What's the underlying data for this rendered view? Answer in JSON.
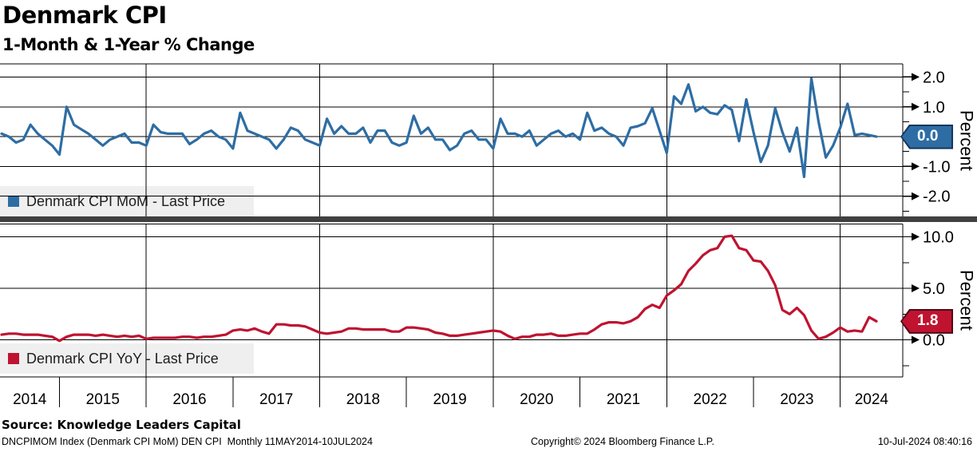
{
  "header": {
    "title": "Denmark CPI",
    "subtitle": "1-Month & 1-Year % Change"
  },
  "x_axis": {
    "year_labels": [
      "2014",
      "2015",
      "2016",
      "2017",
      "2018",
      "2019",
      "2020",
      "2021",
      "2022",
      "2023",
      "2024"
    ],
    "gridline_years": [
      2016,
      2018,
      2020,
      2022,
      2024
    ]
  },
  "chart_data": [
    {
      "type": "line",
      "name": "Denmark CPI MoM",
      "legend": "Denmark CPI MoM - Last Price",
      "ylabel": "Percent",
      "color": "#2E6DA4",
      "badge_border": "#16365C",
      "last_price": 0.0,
      "last_price_label": "0.0",
      "ytick_values": [
        2.0,
        1.0,
        0.0,
        -1.0,
        -2.0
      ],
      "ytick_labels": [
        "2.0",
        "1.0",
        "0.0",
        "-1.0",
        "-2.0"
      ],
      "minor_ticks": [
        1.5,
        0.5,
        -0.5,
        -1.5,
        -2.5
      ],
      "ylim": [
        -2.69,
        2.44
      ],
      "x_start": "2014-05",
      "x_end": "2024-06",
      "frequency": "Monthly",
      "values": [
        0.1,
        0.0,
        -0.2,
        -0.1,
        0.4,
        0.1,
        -0.1,
        -0.3,
        -0.6,
        1.0,
        0.4,
        0.25,
        0.1,
        -0.1,
        -0.3,
        -0.1,
        0.0,
        0.1,
        -0.2,
        -0.2,
        -0.3,
        0.4,
        0.15,
        0.1,
        0.1,
        0.1,
        -0.25,
        -0.1,
        0.1,
        0.2,
        0.0,
        -0.1,
        -0.4,
        0.8,
        0.2,
        0.1,
        0.0,
        -0.1,
        -0.4,
        -0.1,
        0.3,
        0.2,
        -0.1,
        -0.2,
        -0.3,
        0.6,
        0.1,
        0.35,
        0.1,
        0.1,
        0.3,
        -0.2,
        0.2,
        0.2,
        -0.2,
        -0.3,
        -0.2,
        0.7,
        0.1,
        0.3,
        -0.1,
        -0.1,
        -0.45,
        -0.3,
        0.1,
        0.2,
        -0.1,
        -0.1,
        -0.4,
        0.6,
        0.1,
        0.1,
        0.0,
        0.2,
        -0.3,
        -0.1,
        0.1,
        0.2,
        0.0,
        0.1,
        -0.1,
        0.8,
        0.2,
        0.3,
        0.1,
        0.0,
        -0.3,
        0.3,
        0.35,
        0.45,
        0.95,
        0.2,
        -0.55,
        1.35,
        1.1,
        1.75,
        0.85,
        1.0,
        0.8,
        0.75,
        1.05,
        0.9,
        -0.15,
        1.25,
        0.15,
        -0.85,
        -0.3,
        0.95,
        0.15,
        -0.5,
        0.3,
        -1.35,
        1.95,
        0.5,
        -0.7,
        -0.3,
        0.3,
        1.1,
        0.05,
        0.1,
        0.05,
        0.0
      ]
    },
    {
      "type": "line",
      "name": "Denmark CPI YoY",
      "legend": "Denmark CPI YoY - Last Price",
      "ylabel": "Percent",
      "color": "#BF1330",
      "badge_border": "#4F0A16",
      "last_price": 1.8,
      "last_price_label": "1.8",
      "ytick_values": [
        10.0,
        5.0,
        0.0
      ],
      "ytick_labels": [
        "10.0",
        "5.0",
        "0.0"
      ],
      "minor_ticks": [
        7.5,
        2.5,
        -2.5
      ],
      "ylim": [
        -3.6,
        11.24
      ],
      "x_start": "2014-05",
      "x_end": "2024-06",
      "frequency": "Monthly",
      "values": [
        0.5,
        0.6,
        0.6,
        0.5,
        0.5,
        0.5,
        0.4,
        0.3,
        -0.1,
        0.3,
        0.5,
        0.5,
        0.5,
        0.4,
        0.5,
        0.4,
        0.3,
        0.4,
        0.3,
        0.4,
        0.1,
        0.2,
        0.2,
        0.2,
        0.2,
        0.3,
        0.3,
        0.2,
        0.3,
        0.3,
        0.4,
        0.5,
        0.9,
        1.0,
        0.9,
        1.1,
        0.8,
        0.6,
        1.5,
        1.5,
        1.4,
        1.4,
        1.3,
        1.0,
        0.7,
        0.6,
        0.7,
        0.8,
        1.1,
        1.1,
        1.0,
        1.0,
        1.0,
        1.0,
        0.8,
        0.8,
        1.2,
        1.2,
        1.1,
        1.0,
        0.7,
        0.6,
        0.4,
        0.4,
        0.5,
        0.6,
        0.7,
        0.8,
        0.9,
        0.8,
        0.4,
        0.1,
        0.3,
        0.3,
        0.5,
        0.5,
        0.6,
        0.4,
        0.4,
        0.5,
        0.6,
        0.6,
        1.0,
        1.5,
        1.7,
        1.7,
        1.6,
        1.8,
        2.2,
        3.0,
        3.4,
        3.1,
        4.3,
        4.8,
        5.4,
        6.7,
        7.4,
        8.2,
        8.7,
        8.9,
        10.0,
        10.1,
        8.9,
        8.7,
        7.7,
        7.6,
        6.7,
        5.3,
        2.9,
        2.5,
        3.1,
        2.4,
        0.9,
        0.1,
        0.3,
        0.7,
        1.2,
        0.8,
        0.9,
        0.8,
        2.2,
        1.8
      ]
    }
  ],
  "footer": {
    "source": "Source: Knowledge Leaders Capital",
    "security_info": "DNCPIMOM Index (Denmark CPI MoM) DEN CPI  Monthly 11MAY2014-10JUL2024",
    "copyright": "Copyright© 2024 Bloomberg Finance L.P.",
    "timestamp": "10-Jul-2024 08:40:16"
  }
}
